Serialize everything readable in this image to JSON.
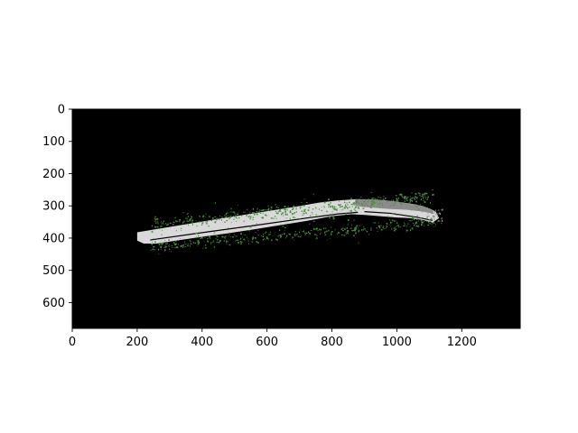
{
  "chart_data": {
    "type": "heatmap",
    "title": "",
    "xlabel": "",
    "ylabel": "",
    "xlim": [
      0,
      1380
    ],
    "ylim": [
      680,
      0
    ],
    "x_ticks": [
      0,
      200,
      400,
      600,
      800,
      1000,
      1200
    ],
    "y_ticks": [
      0,
      100,
      200,
      300,
      400,
      500,
      600
    ],
    "x_tick_labels": [
      "0",
      "200",
      "400",
      "600",
      "800",
      "1000",
      "1200"
    ],
    "y_tick_labels": [
      "0",
      "100",
      "200",
      "300",
      "400",
      "500",
      "600"
    ],
    "colors": {
      "background": "#000000",
      "surface": "#d9d9d9",
      "shadow": "#8c8c8c",
      "vegetation": "#4f8a45",
      "frame": "#000000"
    },
    "regions": [
      {
        "name": "road-main",
        "color": "surface",
        "polygon": [
          [
            200,
            382
          ],
          [
            320,
            362
          ],
          [
            440,
            342
          ],
          [
            560,
            323
          ],
          [
            680,
            304
          ],
          [
            760,
            290
          ],
          [
            820,
            283
          ],
          [
            880,
            279
          ],
          [
            940,
            281
          ],
          [
            1000,
            287
          ],
          [
            1060,
            296
          ],
          [
            1100,
            308
          ],
          [
            1120,
            318
          ],
          [
            1130,
            338
          ],
          [
            1110,
            352
          ],
          [
            1080,
            344
          ],
          [
            1040,
            338
          ],
          [
            1000,
            336
          ],
          [
            960,
            333
          ],
          [
            900,
            328
          ],
          [
            860,
            326
          ],
          [
            800,
            332
          ],
          [
            720,
            347
          ],
          [
            640,
            360
          ],
          [
            560,
            373
          ],
          [
            480,
            385
          ],
          [
            400,
            396
          ],
          [
            320,
            408
          ],
          [
            260,
            417
          ],
          [
            220,
            417
          ],
          [
            200,
            408
          ]
        ]
      },
      {
        "name": "road-shadow",
        "color": "shadow",
        "polygon": [
          [
            880,
            280
          ],
          [
            960,
            282
          ],
          [
            1030,
            292
          ],
          [
            1080,
            300
          ],
          [
            1110,
            312
          ],
          [
            1115,
            325
          ],
          [
            1080,
            318
          ],
          [
            1030,
            312
          ],
          [
            980,
            310
          ],
          [
            930,
            306
          ],
          [
            890,
            303
          ],
          [
            860,
            296
          ]
        ]
      }
    ],
    "lines": [
      {
        "name": "road-gap-line",
        "color": "background",
        "points": [
          [
            240,
            406
          ],
          [
            400,
            383
          ],
          [
            560,
            361
          ],
          [
            720,
            338
          ],
          [
            820,
            325
          ],
          [
            880,
            320
          ]
        ]
      },
      {
        "name": "road-gap-line-2",
        "color": "background",
        "points": [
          [
            900,
            318
          ],
          [
            980,
            323
          ],
          [
            1060,
            335
          ],
          [
            1110,
            345
          ]
        ]
      }
    ],
    "speckles": [
      {
        "name": "veg-upper",
        "color": "vegetation",
        "x_range": [
          250,
          1110
        ],
        "center_start": 355,
        "center_end": 268,
        "spread": 18,
        "count": 420
      },
      {
        "name": "veg-lower",
        "color": "vegetation",
        "x_range": [
          240,
          1120
        ],
        "center_start": 425,
        "center_end": 348,
        "spread": 16,
        "count": 360
      },
      {
        "name": "veg-outliers",
        "color": "vegetation",
        "x_range": [
          240,
          1120
        ],
        "center_start": 390,
        "center_end": 300,
        "spread": 55,
        "count": 90
      },
      {
        "name": "dark-specks",
        "color": "shadow",
        "x_range": [
          1090,
          1140
        ],
        "center_start": 330,
        "center_end": 330,
        "spread": 20,
        "count": 30
      }
    ]
  }
}
